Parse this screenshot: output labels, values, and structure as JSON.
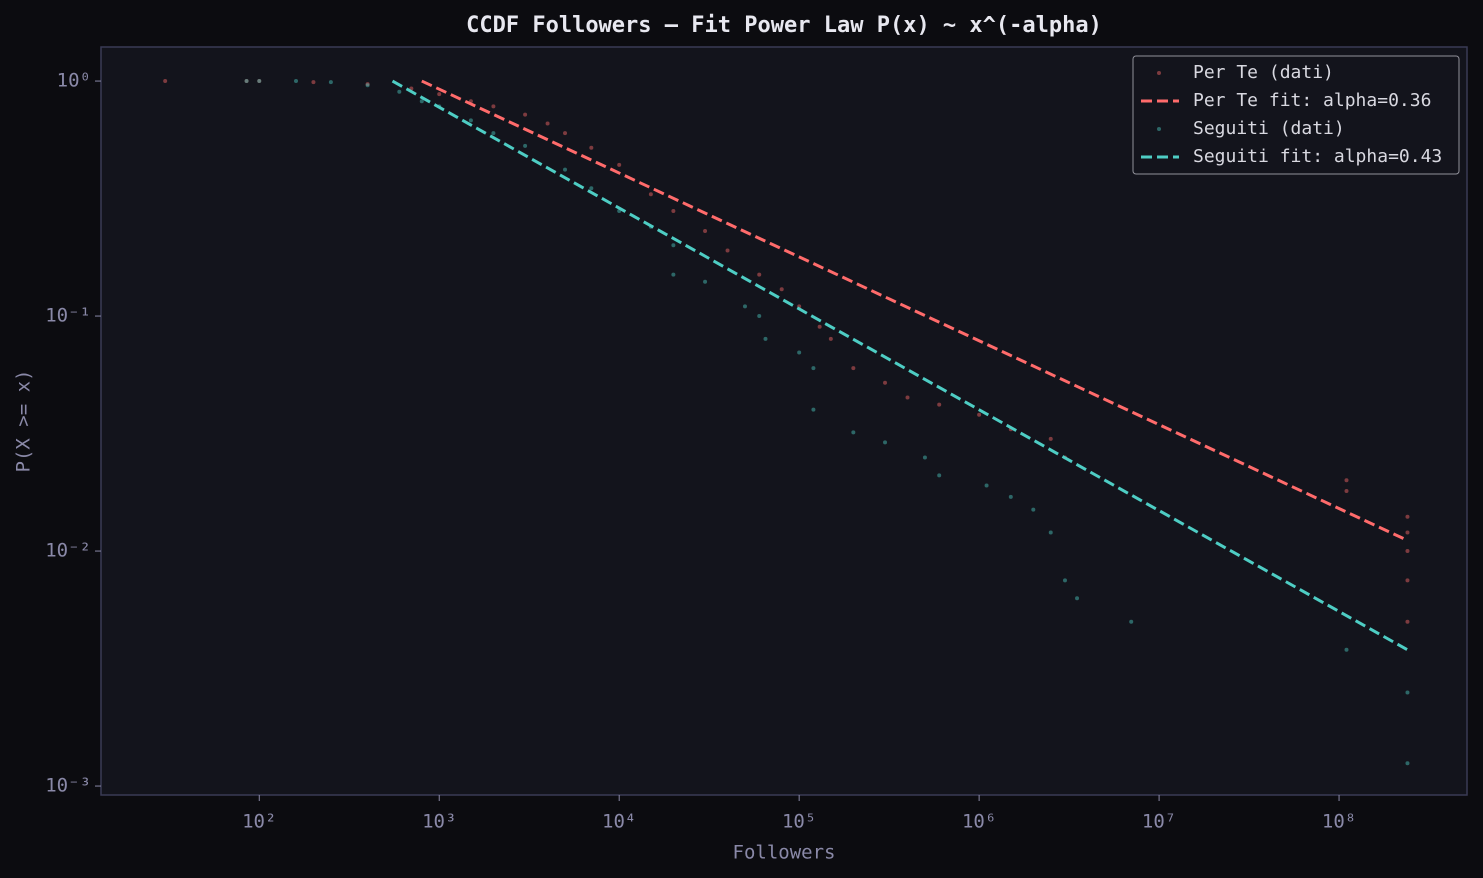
{
  "chart_data": {
    "type": "scatter",
    "title": "CCDF Followers — Fit Power Law P(x) ~ x^(-alpha)",
    "x_label": "Followers",
    "y_label": "P(X >= x)",
    "log_x": true,
    "log_y": true,
    "legend": "upper right",
    "xlim": [
      13.2,
      514000000
    ],
    "ylim": [
      0.000916,
      1.396
    ],
    "xticks": [
      {
        "value": 100,
        "label": "10²"
      },
      {
        "value": 1000,
        "label": "10³"
      },
      {
        "value": 10000,
        "label": "10⁴"
      },
      {
        "value": 100000,
        "label": "10⁵"
      },
      {
        "value": 1000000,
        "label": "10⁶"
      },
      {
        "value": 10000000,
        "label": "10⁷"
      },
      {
        "value": 100000000,
        "label": "10⁸"
      }
    ],
    "yticks": [
      {
        "value": 0.001,
        "label": "10⁻³"
      },
      {
        "value": 0.01,
        "label": "10⁻²"
      },
      {
        "value": 0.1,
        "label": "10⁻¹"
      },
      {
        "value": 1,
        "label": "10⁰"
      }
    ],
    "series": [
      {
        "name": "Per Te (dati)",
        "color": "#ff6b6b",
        "style": "dots",
        "x": [
          30,
          85,
          100,
          200,
          400,
          700,
          1000,
          1500,
          2000,
          3000,
          4000,
          5000,
          7000,
          10000,
          15000,
          20000,
          30000,
          40000,
          60000,
          80000,
          100000,
          130000,
          150000,
          200000,
          300000,
          400000,
          600000,
          1000000,
          1500000,
          2500000,
          3000000,
          110000000,
          110000000,
          240000000,
          240000000,
          240000000,
          240000000,
          240000000
        ],
        "values": [
          1.0,
          1.0,
          1.0,
          0.99,
          0.97,
          0.93,
          0.88,
          0.82,
          0.78,
          0.72,
          0.66,
          0.6,
          0.52,
          0.44,
          0.33,
          0.28,
          0.23,
          0.19,
          0.15,
          0.13,
          0.11,
          0.09,
          0.08,
          0.06,
          0.052,
          0.045,
          0.042,
          0.038,
          0.033,
          0.03,
          0.025,
          0.02,
          0.018,
          0.014,
          0.012,
          0.01,
          0.0075,
          0.005
        ]
      },
      {
        "name": "Per Te fit: alpha=0.36",
        "color": "#ff6b6b",
        "style": "dashed",
        "x": [
          800,
          240000000
        ],
        "values": [
          1.0,
          0.0111
        ]
      },
      {
        "name": "Seguiti (dati)",
        "color": "#4ecdc4",
        "style": "dots",
        "x": [
          85,
          100,
          160,
          250,
          400,
          600,
          800,
          1000,
          1500,
          2000,
          3000,
          5000,
          7000,
          10000,
          15000,
          20000,
          20000,
          30000,
          50000,
          60000,
          65000,
          100000,
          120000,
          120000,
          200000,
          300000,
          500000,
          600000,
          1100000,
          1500000,
          2000000,
          2500000,
          3000000,
          3500000,
          7000000,
          110000000,
          240000000,
          240000000
        ],
        "values": [
          1.0,
          1.0,
          1.0,
          0.99,
          0.96,
          0.9,
          0.82,
          0.78,
          0.68,
          0.6,
          0.53,
          0.42,
          0.35,
          0.28,
          0.24,
          0.2,
          0.15,
          0.14,
          0.11,
          0.1,
          0.08,
          0.07,
          0.06,
          0.04,
          0.032,
          0.029,
          0.025,
          0.021,
          0.019,
          0.017,
          0.015,
          0.012,
          0.0075,
          0.0063,
          0.005,
          0.0038,
          0.0025,
          0.00125
        ]
      },
      {
        "name": "Seguiti fit: alpha=0.43",
        "color": "#4ecdc4",
        "style": "dashed",
        "x": [
          550,
          240000000
        ],
        "values": [
          1.0,
          0.0038
        ]
      }
    ]
  }
}
